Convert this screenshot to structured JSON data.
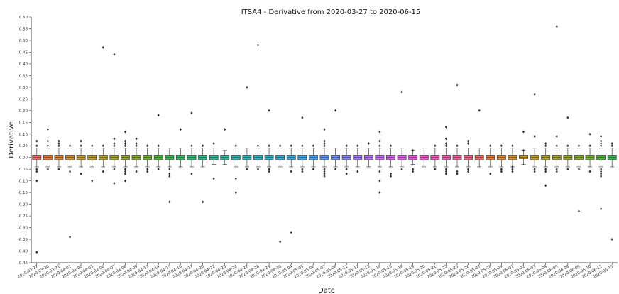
{
  "chart_data": {
    "type": "box",
    "title": "ITSA4 - Derivative from 2020-03-27 to 2020-06-15",
    "xlabel": "Date",
    "ylabel": "Derivative",
    "ylim": [
      -0.45,
      0.6
    ],
    "yticks": [
      0.6,
      0.55,
      0.5,
      0.45,
      0.4,
      0.35,
      0.3,
      0.25,
      0.2,
      0.15,
      0.1,
      0.05,
      0.0,
      -0.05,
      -0.1,
      -0.15,
      -0.2,
      -0.25,
      -0.3,
      -0.35,
      -0.4,
      -0.45
    ],
    "ytick_labels": [
      "0.60",
      "0.55",
      "0.50",
      "0.45",
      "0.40",
      "0.35",
      "0.30",
      "0.25",
      "0.20",
      "0.15",
      "0.10",
      "0.05",
      "0.00",
      "-0.05",
      "-0.10",
      "-0.15",
      "-0.20",
      "-0.25",
      "-0.30",
      "-0.35",
      "-0.40",
      "-0.45"
    ],
    "grid": false,
    "categories": [
      "2020-03-27",
      "2020-03-30",
      "2020-03-31",
      "2020-04-01",
      "2020-04-02",
      "2020-04-03",
      "2020-04-06",
      "2020-04-07",
      "2020-04-08",
      "2020-04-09",
      "2020-04-13",
      "2020-04-14",
      "2020-04-15",
      "2020-04-16",
      "2020-04-17",
      "2020-04-20",
      "2020-04-22",
      "2020-04-23",
      "2020-04-24",
      "2020-04-27",
      "2020-04-28",
      "2020-04-29",
      "2020-04-30",
      "2020-05-04",
      "2020-05-05",
      "2020-05-06",
      "2020-05-07",
      "2020-05-08",
      "2020-05-11",
      "2020-05-12",
      "2020-05-13",
      "2020-05-14",
      "2020-05-15",
      "2020-05-18",
      "2020-05-19",
      "2020-05-20",
      "2020-05-21",
      "2020-05-22",
      "2020-05-25",
      "2020-05-26",
      "2020-05-27",
      "2020-05-28",
      "2020-05-29",
      "2020-06-01",
      "2020-06-02",
      "2020-06-03",
      "2020-06-04",
      "2020-06-05",
      "2020-06-08",
      "2020-06-09",
      "2020-06-10",
      "2020-06-12",
      "2020-06-15"
    ],
    "colors": [
      "#e8746a",
      "#e47b3b",
      "#dd8a3b",
      "#d39334",
      "#c89b35",
      "#bd9f34",
      "#b2a233",
      "#a6a533",
      "#97a833",
      "#86ac33",
      "#6fb035",
      "#4fb43a",
      "#39b652",
      "#38b767",
      "#37b779",
      "#37b78a",
      "#37b697",
      "#37b5a3",
      "#37b4ae",
      "#38b3b7",
      "#38b2bf",
      "#39b0c8",
      "#3badd2",
      "#3eaadc",
      "#43a5e6",
      "#4a9fee",
      "#5d97f2",
      "#7490f3",
      "#8b89f3",
      "#a07ef2",
      "#b474f2",
      "#c56bf0",
      "#d364ec",
      "#df5fe5",
      "#e75bdb",
      "#ec5ccd",
      "#ef5ebe",
      "#f061ae",
      "#ee669e",
      "#ea6b8c"
    ],
    "series": [
      {
        "category": "2020-03-27",
        "q1": -0.01,
        "median": 0.0,
        "q3": 0.01,
        "whisker_low": -0.04,
        "whisker_high": 0.04,
        "outliers": [
          -0.405,
          -0.1,
          -0.06,
          -0.05,
          0.05,
          0.07
        ]
      },
      {
        "category": "2020-03-30",
        "q1": -0.01,
        "median": 0.0,
        "q3": 0.01,
        "whisker_low": -0.04,
        "whisker_high": 0.04,
        "outliers": [
          -0.05,
          0.05,
          0.07,
          0.12
        ]
      },
      {
        "category": "2020-03-31",
        "q1": -0.01,
        "median": 0.0,
        "q3": 0.01,
        "whisker_low": -0.04,
        "whisker_high": 0.04,
        "outliers": [
          -0.05,
          0.05,
          0.06,
          0.07
        ]
      },
      {
        "category": "2020-04-01",
        "q1": -0.01,
        "median": 0.0,
        "q3": 0.01,
        "whisker_low": -0.04,
        "whisker_high": 0.04,
        "outliers": [
          -0.34,
          -0.06,
          0.05
        ]
      },
      {
        "category": "2020-04-02",
        "q1": -0.01,
        "median": 0.0,
        "q3": 0.01,
        "whisker_low": -0.04,
        "whisker_high": 0.04,
        "outliers": [
          -0.07,
          0.05,
          0.07
        ]
      },
      {
        "category": "2020-04-03",
        "q1": -0.01,
        "median": 0.0,
        "q3": 0.01,
        "whisker_low": -0.04,
        "whisker_high": 0.04,
        "outliers": [
          -0.1,
          0.05
        ]
      },
      {
        "category": "2020-04-06",
        "q1": -0.01,
        "median": 0.0,
        "q3": 0.01,
        "whisker_low": -0.04,
        "whisker_high": 0.04,
        "outliers": [
          -0.06,
          0.05,
          0.47
        ]
      },
      {
        "category": "2020-04-07",
        "q1": -0.01,
        "median": 0.0,
        "q3": 0.01,
        "whisker_low": -0.04,
        "whisker_high": 0.04,
        "outliers": [
          -0.11,
          -0.05,
          0.05,
          0.06,
          0.08,
          0.44
        ]
      },
      {
        "category": "2020-04-08",
        "q1": -0.01,
        "median": 0.0,
        "q3": 0.01,
        "whisker_low": -0.04,
        "whisker_high": 0.04,
        "outliers": [
          -0.1,
          -0.07,
          -0.06,
          -0.05,
          0.05,
          0.06,
          0.07,
          0.11
        ]
      },
      {
        "category": "2020-04-09",
        "q1": -0.01,
        "median": 0.0,
        "q3": 0.01,
        "whisker_low": -0.04,
        "whisker_high": 0.04,
        "outliers": [
          -0.06,
          0.05,
          0.06,
          0.08
        ]
      },
      {
        "category": "2020-04-13",
        "q1": -0.01,
        "median": 0.0,
        "q3": 0.01,
        "whisker_low": -0.04,
        "whisker_high": 0.04,
        "outliers": [
          -0.06,
          -0.05,
          0.05
        ]
      },
      {
        "category": "2020-04-14",
        "q1": -0.01,
        "median": 0.0,
        "q3": 0.01,
        "whisker_low": -0.04,
        "whisker_high": 0.04,
        "outliers": [
          -0.05,
          0.05,
          0.18
        ]
      },
      {
        "category": "2020-04-15",
        "q1": -0.01,
        "median": 0.0,
        "q3": 0.01,
        "whisker_low": -0.04,
        "whisker_high": 0.04,
        "outliers": [
          -0.19,
          -0.08,
          -0.07,
          -0.05
        ]
      },
      {
        "category": "2020-04-16",
        "q1": -0.01,
        "median": 0.0,
        "q3": 0.01,
        "whisker_low": -0.04,
        "whisker_high": 0.04,
        "outliers": [
          0.12
        ]
      },
      {
        "category": "2020-04-17",
        "q1": -0.01,
        "median": 0.0,
        "q3": 0.01,
        "whisker_low": -0.04,
        "whisker_high": 0.04,
        "outliers": [
          -0.07,
          0.05,
          0.19
        ]
      },
      {
        "category": "2020-04-20",
        "q1": -0.01,
        "median": 0.0,
        "q3": 0.01,
        "whisker_low": -0.04,
        "whisker_high": 0.04,
        "outliers": [
          -0.19,
          0.05
        ]
      },
      {
        "category": "2020-04-22",
        "q1": -0.01,
        "median": 0.0,
        "q3": 0.01,
        "whisker_low": -0.03,
        "whisker_high": 0.04,
        "outliers": [
          -0.09,
          0.06
        ]
      },
      {
        "category": "2020-04-23",
        "q1": -0.01,
        "median": 0.0,
        "q3": 0.01,
        "whisker_low": -0.03,
        "whisker_high": 0.03,
        "outliers": [
          0.12
        ]
      },
      {
        "category": "2020-04-24",
        "q1": -0.01,
        "median": 0.0,
        "q3": 0.01,
        "whisker_low": -0.04,
        "whisker_high": 0.04,
        "outliers": [
          -0.15,
          -0.09,
          0.05
        ]
      },
      {
        "category": "2020-04-27",
        "q1": -0.01,
        "median": 0.0,
        "q3": 0.01,
        "whisker_low": -0.04,
        "whisker_high": 0.04,
        "outliers": [
          -0.05,
          0.3
        ]
      },
      {
        "category": "2020-04-28",
        "q1": -0.01,
        "median": 0.0,
        "q3": 0.01,
        "whisker_low": -0.04,
        "whisker_high": 0.04,
        "outliers": [
          -0.05,
          0.05,
          0.48
        ]
      },
      {
        "category": "2020-04-29",
        "q1": -0.01,
        "median": 0.0,
        "q3": 0.01,
        "whisker_low": -0.04,
        "whisker_high": 0.04,
        "outliers": [
          -0.06,
          -0.05,
          0.05,
          0.2
        ]
      },
      {
        "category": "2020-04-30",
        "q1": -0.01,
        "median": 0.0,
        "q3": 0.01,
        "whisker_low": -0.04,
        "whisker_high": 0.04,
        "outliers": [
          -0.36,
          0.05
        ]
      },
      {
        "category": "2020-05-04",
        "q1": -0.01,
        "median": 0.0,
        "q3": 0.01,
        "whisker_low": -0.04,
        "whisker_high": 0.04,
        "outliers": [
          -0.32,
          -0.06,
          0.05
        ]
      },
      {
        "category": "2020-05-05",
        "q1": -0.01,
        "median": 0.0,
        "q3": 0.01,
        "whisker_low": -0.04,
        "whisker_high": 0.04,
        "outliers": [
          -0.06,
          -0.05,
          0.05,
          0.17
        ]
      },
      {
        "category": "2020-05-06",
        "q1": -0.01,
        "median": 0.0,
        "q3": 0.01,
        "whisker_low": -0.04,
        "whisker_high": 0.04,
        "outliers": [
          -0.05,
          0.05
        ]
      },
      {
        "category": "2020-05-07",
        "q1": -0.01,
        "median": 0.0,
        "q3": 0.01,
        "whisker_low": -0.04,
        "whisker_high": 0.04,
        "outliers": [
          -0.08,
          -0.07,
          -0.06,
          -0.05,
          0.05,
          0.06,
          0.07,
          0.12
        ]
      },
      {
        "category": "2020-05-08",
        "q1": -0.01,
        "median": 0.0,
        "q3": 0.01,
        "whisker_low": -0.04,
        "whisker_high": 0.04,
        "outliers": [
          -0.05,
          0.2
        ]
      },
      {
        "category": "2020-05-11",
        "q1": -0.01,
        "median": 0.0,
        "q3": 0.01,
        "whisker_low": -0.04,
        "whisker_high": 0.04,
        "outliers": [
          -0.07,
          -0.05,
          0.05
        ]
      },
      {
        "category": "2020-05-12",
        "q1": -0.01,
        "median": 0.0,
        "q3": 0.01,
        "whisker_low": -0.04,
        "whisker_high": 0.04,
        "outliers": [
          -0.06,
          0.05
        ]
      },
      {
        "category": "2020-05-13",
        "q1": -0.01,
        "median": 0.0,
        "q3": 0.01,
        "whisker_low": -0.04,
        "whisker_high": 0.04,
        "outliers": [
          0.06
        ]
      },
      {
        "category": "2020-05-14",
        "q1": -0.01,
        "median": 0.0,
        "q3": 0.01,
        "whisker_low": -0.04,
        "whisker_high": 0.04,
        "outliers": [
          -0.15,
          -0.1,
          -0.06,
          0.05,
          0.07,
          0.11
        ]
      },
      {
        "category": "2020-05-15",
        "q1": -0.01,
        "median": 0.0,
        "q3": 0.01,
        "whisker_low": -0.04,
        "whisker_high": 0.04,
        "outliers": [
          -0.08,
          -0.07,
          0.05
        ]
      },
      {
        "category": "2020-05-18",
        "q1": -0.01,
        "median": 0.0,
        "q3": 0.01,
        "whisker_low": -0.04,
        "whisker_high": 0.04,
        "outliers": [
          -0.05,
          0.28
        ]
      },
      {
        "category": "2020-05-19",
        "q1": -0.01,
        "median": 0.0,
        "q3": 0.01,
        "whisker_low": -0.03,
        "whisker_high": 0.03,
        "outliers": [
          -0.06,
          -0.05,
          0.03
        ]
      },
      {
        "category": "2020-05-20",
        "q1": -0.01,
        "median": 0.0,
        "q3": 0.01,
        "whisker_low": -0.04,
        "whisker_high": 0.04,
        "outliers": []
      },
      {
        "category": "2020-05-21",
        "q1": -0.01,
        "median": 0.0,
        "q3": 0.01,
        "whisker_low": -0.04,
        "whisker_high": 0.04,
        "outliers": [
          -0.05,
          0.05
        ]
      },
      {
        "category": "2020-05-22",
        "q1": -0.01,
        "median": 0.0,
        "q3": 0.01,
        "whisker_low": -0.04,
        "whisker_high": 0.04,
        "outliers": [
          -0.07,
          -0.06,
          -0.05,
          0.05,
          0.06,
          0.08,
          0.13
        ]
      },
      {
        "category": "2020-05-25",
        "q1": -0.01,
        "median": 0.0,
        "q3": 0.01,
        "whisker_low": -0.04,
        "whisker_high": 0.04,
        "outliers": [
          -0.07,
          -0.06,
          0.05,
          0.31
        ]
      },
      {
        "category": "2020-05-26",
        "q1": -0.01,
        "median": 0.0,
        "q3": 0.01,
        "whisker_low": -0.04,
        "whisker_high": 0.04,
        "outliers": [
          -0.06,
          -0.05,
          0.06,
          0.07
        ]
      },
      {
        "category": "2020-05-27",
        "q1": -0.01,
        "median": 0.0,
        "q3": 0.01,
        "whisker_low": -0.04,
        "whisker_high": 0.04,
        "outliers": [
          0.2
        ]
      },
      {
        "category": "2020-05-28",
        "q1": -0.01,
        "median": 0.0,
        "q3": 0.01,
        "whisker_low": -0.04,
        "whisker_high": 0.04,
        "outliers": [
          -0.07,
          0.05
        ]
      },
      {
        "category": "2020-05-29",
        "q1": -0.01,
        "median": 0.0,
        "q3": 0.01,
        "whisker_low": -0.04,
        "whisker_high": 0.04,
        "outliers": [
          -0.06,
          -0.05,
          0.05
        ]
      },
      {
        "category": "2020-06-01",
        "q1": -0.01,
        "median": 0.0,
        "q3": 0.01,
        "whisker_low": -0.04,
        "whisker_high": 0.04,
        "outliers": [
          -0.06,
          -0.05,
          -0.04,
          0.05
        ]
      },
      {
        "category": "2020-06-02",
        "q1": -0.005,
        "median": 0.0,
        "q3": 0.01,
        "whisker_low": -0.03,
        "whisker_high": 0.03,
        "outliers": [
          0.11,
          0.03
        ]
      },
      {
        "category": "2020-06-03",
        "q1": -0.01,
        "median": 0.0,
        "q3": 0.01,
        "whisker_low": -0.04,
        "whisker_high": 0.04,
        "outliers": [
          -0.06,
          -0.05,
          0.09,
          0.27
        ]
      },
      {
        "category": "2020-06-04",
        "q1": -0.01,
        "median": 0.0,
        "q3": 0.01,
        "whisker_low": -0.04,
        "whisker_high": 0.04,
        "outliers": [
          -0.12,
          -0.06,
          -0.05,
          0.05,
          0.06
        ]
      },
      {
        "category": "2020-06-05",
        "q1": -0.01,
        "median": 0.0,
        "q3": 0.01,
        "whisker_low": -0.04,
        "whisker_high": 0.04,
        "outliers": [
          -0.06,
          -0.05,
          0.05,
          0.09,
          0.56
        ]
      },
      {
        "category": "2020-06-08",
        "q1": -0.01,
        "median": 0.0,
        "q3": 0.01,
        "whisker_low": -0.04,
        "whisker_high": 0.04,
        "outliers": [
          -0.05,
          0.05,
          0.17
        ]
      },
      {
        "category": "2020-06-09",
        "q1": -0.01,
        "median": 0.0,
        "q3": 0.01,
        "whisker_low": -0.04,
        "whisker_high": 0.04,
        "outliers": [
          -0.23,
          -0.05,
          0.05
        ]
      },
      {
        "category": "2020-06-10",
        "q1": -0.01,
        "median": 0.0,
        "q3": 0.01,
        "whisker_low": -0.04,
        "whisker_high": 0.04,
        "outliers": [
          -0.06,
          0.05,
          0.1
        ]
      },
      {
        "category": "2020-06-12",
        "q1": -0.01,
        "median": 0.0,
        "q3": 0.01,
        "whisker_low": -0.04,
        "whisker_high": 0.04,
        "outliers": [
          -0.22,
          -0.08,
          -0.07,
          -0.06,
          -0.05,
          0.05,
          0.06,
          0.07,
          0.09
        ]
      },
      {
        "category": "2020-06-15",
        "q1": -0.01,
        "median": 0.0,
        "q3": 0.01,
        "whisker_low": -0.04,
        "whisker_high": 0.04,
        "outliers": [
          -0.35,
          0.05,
          0.06
        ]
      }
    ]
  }
}
